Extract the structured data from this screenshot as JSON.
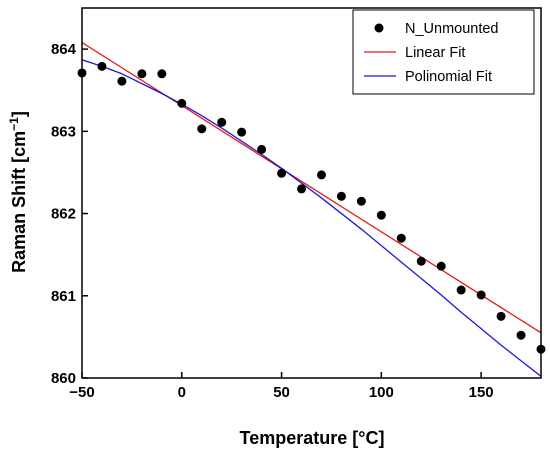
{
  "chart_data": {
    "type": "scatter",
    "title": "",
    "xlabel": "Temperature [°C]",
    "ylabel_main": "Raman Shift [cm",
    "ylabel_sup": "−1",
    "ylabel_close": "]",
    "xlim": [
      -50,
      180
    ],
    "ylim": [
      860,
      864.5
    ],
    "x_ticks": [
      -50,
      0,
      50,
      100,
      150
    ],
    "x_tick_labels": [
      "−50",
      "0",
      "50",
      "100",
      "150"
    ],
    "y_ticks": [
      860,
      861,
      862,
      863,
      864
    ],
    "y_tick_labels": [
      "860",
      "861",
      "862",
      "863",
      "864"
    ],
    "grid": false,
    "legend_position": "top-right",
    "series": [
      {
        "name": "N_Unmounted",
        "kind": "scatter",
        "color": "#000000",
        "x": [
          -50,
          -40,
          -30,
          -20,
          -10,
          0,
          10,
          20,
          30,
          40,
          50,
          60,
          70,
          80,
          90,
          100,
          110,
          120,
          130,
          140,
          150,
          160,
          170,
          180
        ],
        "y": [
          863.71,
          863.79,
          863.61,
          863.7,
          863.7,
          863.34,
          863.03,
          863.11,
          862.99,
          862.78,
          862.49,
          862.3,
          862.47,
          862.21,
          862.15,
          861.98,
          861.7,
          861.42,
          861.36,
          861.07,
          861.01,
          860.75,
          860.52,
          860.35
        ]
      },
      {
        "name": "Linear Fit",
        "kind": "line",
        "color": "#e8191b",
        "x": [
          -50,
          180
        ],
        "y": [
          864.08,
          860.55
        ]
      },
      {
        "name": "Polinomial Fit",
        "kind": "line",
        "color": "#1a1ad6",
        "x": [
          -50,
          -40,
          -30,
          -20,
          -10,
          0,
          10,
          20,
          30,
          40,
          50,
          60,
          70,
          80,
          90,
          100,
          110,
          120,
          130,
          140,
          150,
          160,
          170,
          180
        ],
        "y": [
          863.87,
          863.79,
          863.7,
          863.58,
          863.46,
          863.33,
          863.19,
          863.04,
          862.88,
          862.72,
          862.55,
          862.37,
          862.19,
          862.0,
          861.81,
          861.61,
          861.41,
          861.21,
          861.01,
          860.8,
          860.6,
          860.4,
          860.21,
          860.02
        ]
      }
    ]
  }
}
